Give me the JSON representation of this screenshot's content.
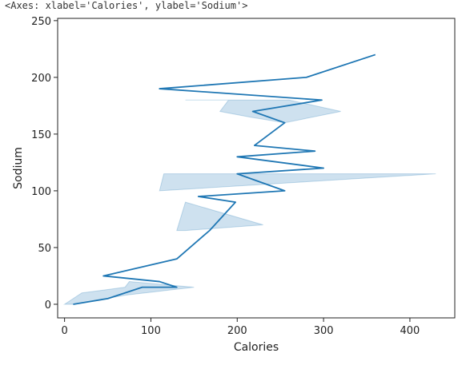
{
  "repr_text": "<Axes: xlabel='Calories', ylabel='Sodium'>",
  "chart_data": {
    "type": "line",
    "orientation": "y",
    "xlabel": "Calories",
    "ylabel": "Sodium",
    "xlim": [
      -8,
      452
    ],
    "ylim": [
      -12,
      252
    ],
    "xticks": [
      0,
      100,
      200,
      300,
      400
    ],
    "yticks": [
      0,
      50,
      100,
      150,
      200,
      250
    ],
    "grid": false,
    "color": "#1f77b4",
    "band_color": "#1f77b4",
    "series": [
      {
        "x": [
          10,
          50,
          70,
          90,
          130,
          110,
          45,
          130,
          168,
          198,
          155,
          255,
          200,
          300,
          200,
          290,
          220,
          255,
          218,
          298,
          110,
          280,
          360
        ],
        "y": [
          0,
          5,
          10,
          15,
          15,
          20,
          25,
          40,
          65,
          90,
          95,
          100,
          115,
          120,
          130,
          135,
          140,
          160,
          170,
          180,
          190,
          200,
          220
        ]
      }
    ],
    "bands": [
      {
        "points": [
          [
            0,
            0
          ],
          [
            10,
            0
          ],
          [
            48,
            5
          ],
          [
            70,
            8
          ],
          [
            150,
            15
          ],
          [
            75,
            20
          ],
          [
            70,
            15
          ],
          [
            20,
            10
          ]
        ]
      },
      {
        "points": [
          [
            140,
            65
          ],
          [
            230,
            70
          ],
          [
            140,
            90
          ],
          [
            130,
            65
          ]
        ]
      },
      {
        "points": [
          [
            110,
            100
          ],
          [
            430,
            115
          ],
          [
            115,
            115
          ]
        ]
      },
      {
        "points": [
          [
            140,
            180
          ],
          [
            260,
            180
          ],
          [
            320,
            170
          ],
          [
            255,
            160
          ],
          [
            215,
            165
          ],
          [
            180,
            170
          ],
          [
            190,
            180
          ]
        ]
      }
    ]
  }
}
